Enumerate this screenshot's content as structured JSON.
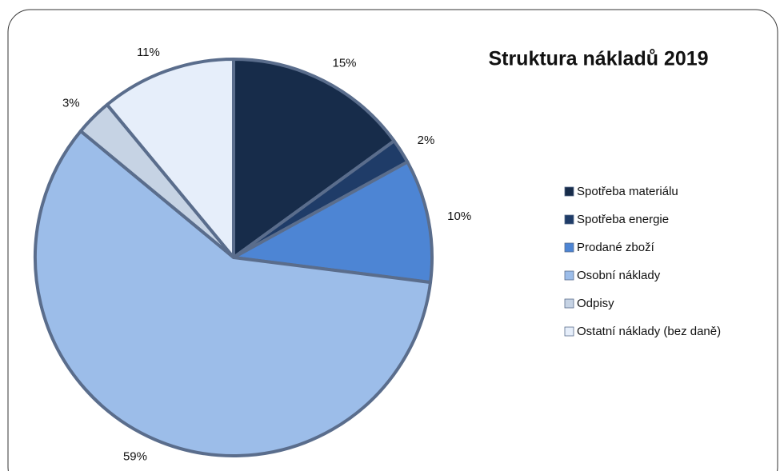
{
  "chart_data": {
    "type": "pie",
    "title": "Struktura nákladů 2019",
    "categories": [
      "Spotřeba materiálu",
      "Spotřeba energie",
      "Prodané zboží",
      "Osobní náklady",
      "Odpisy",
      "Ostatní náklady (bez daně)"
    ],
    "values": [
      15,
      2,
      10,
      59,
      3,
      11
    ],
    "value_labels": [
      "15%",
      "2%",
      "10%",
      "59%",
      "3%",
      "11%"
    ],
    "colors": [
      "#172c4a",
      "#1f3c68",
      "#4d85d4",
      "#9cbde9",
      "#c6d3e4",
      "#e6eefa"
    ],
    "legend": "right"
  }
}
